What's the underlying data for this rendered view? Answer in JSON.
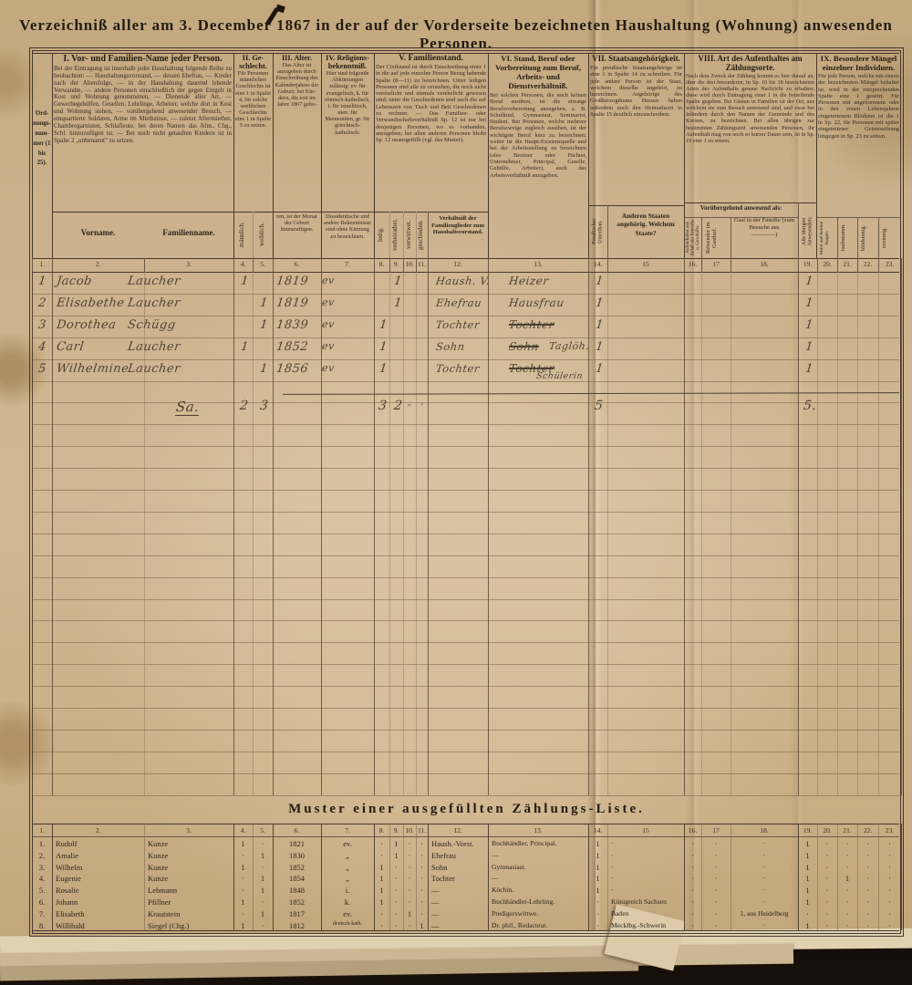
{
  "page_title": "Verzeichniß aller am 3. December 1867 in der auf der Vorderseite bezeichneten Haushaltung (Wohnung) anwesenden Personen.",
  "colors": {
    "paper": "#c9ae87",
    "print_ink": "#2e251a",
    "hand_ink": "#4e4232",
    "background": "#17100a"
  },
  "main_table": {
    "order_column_label": "Ord- nungs- num- mer (1 bis 25).",
    "sections": [
      {
        "title": "I. Vor- und Familien-Name jeder Person.",
        "desc": "Bei der Eintragung ist innerhalb jeder Haushaltung folgende Reihe zu beobachten: — Haushaltungsvorstand, — dessen Ehefrau, — Kinder nach der Altersfolge, — in der Haushaltung dauernd lebende Verwandte, — andere Personen einschließlich der gegen Entgelt in Kost und Wohnung genommenen, — Dienende aller Art, — Gewerbegehülfen, Gesellen, Lehrlinge, Arbeiter, welche dort in Kost und Wohnung stehen, — vorübergehend anwesender Besuch, — einquartierte Soldaten, Arme im Miethzinse, — zuletzt Aftermiether, Chambregarnisten, Schlafleute, bei deren Namen das Afm., Chg., Schl. hinzuzufügen ist. — Bei noch nicht getauften Kindern ist in Spalte 2 „unbenannt” zu setzen."
      },
      {
        "title": "II. Ge­schlecht.",
        "desc": "Für Personen männ­lichen Geschlechts ist eine 1 in Spalte 4, für solche weiblichen Geschlechts eine 1 in Spalte 5 zu setzen."
      },
      {
        "title": "III. Alter.",
        "desc": "Das Alter ist anzugeben durch Einschrei­bung des Kalender­jahres der Geburt; bei Kin­dern, die erst im Jahre 1867 gebo-"
      },
      {
        "title": "IV. Reli­gions­bekenntniß.",
        "desc": "Hier sind folgende Abkürzungen zulässig: ev. für evangelisch, k. für römisch-katholisch, i. für israelitisch, men. für Mennoniten, gr. für griechisch-katholisch."
      },
      {
        "title": "V. Familienstand.",
        "desc": "Der Civilstand ist durch Einschreibung einer 1 in die auf jede einzelne Person Bezug habende Spalte (8—11) zu bezeichnen. Unter ledigen Personen sind alle zu verstehen, die noch nicht verehelicht und niemals verehelicht gewesen sind; unter die Geschiedenen sind auch die auf Lebenszeit von Tisch und Bett Geschiedenen zu rechnen. — Das Familien- oder Verwandtschaftsverhältniß Sp. 12 ist nur bei denjenigen Personen, wo es vorhanden, anzugeben; bei allen anderen Personen bleibt Sp. 12 unausgefüllt (vgl. das Muster)."
      },
      {
        "title": "VI. Stand, Beruf oder Vorbereitung zum Beruf, Arbeits- und Dienstverhältniß.",
        "desc": "Bei solchen Personen, die noch keinen Beruf ausüben, ist die etwaige Berufsvorbereitung anzugeben, z. B. Schulkind, Gymnasiast, Seminarist, Student. Bei Personen, welche mehrere Berufszweige zugleich ausüben, ist der wichtigste Beruf kurz zu bezeichnen; weiter ist die Haupt-Existenzquelle und bei der Arbeitsstellung zu bezeichnen (also Besitzer oder Pächter, Unternehmer, Principal, Geselle, Gehülfe, Arbeiter), auch das Arbeitsverhältniß anzugeben."
      },
      {
        "title": "VII. Staatsangehörigkeit.",
        "desc": "Für preußische Staatsangehörige ist eine 1 in Spalte 14 zu schreiben. Für jede andere Person ist der Staat, welchem dieselbe angehört, zu bezeichnen. Angehörige des Großherzogthums Hessen haben außerdem noch den Heimathsort in Spalte 15 deutlich einzuschreiben."
      },
      {
        "title": "VIII. Art des Aufenthaltes am Zählungsorte.",
        "desc": "Nach dem Zweck der Zählung kommt es hier darauf an, über die drei besonderen, in Sp. 16 bis 18 bezeichneten Arten des Aufenthalts genaue Nachricht zu erhalten; diese wird durch Eintragung einer 1 in die betreffende Spalte gegeben. Bei Gästen in Familien ist der Ort, aus welchem sie zum Besuch anwesend sind, und zwar bei Inländern durch den Namen der Gemeinde und des Kreises, zu bezeichnen. Bei allen übrigen zur bestimmten Zählungszeit anwesenden Personen, ihr Aufenthalt mag von noch so kurzer Dauer sein, ist in Sp. 19 eine 1 zu setzen."
      },
      {
        "title": "IX. Besondere Mängel einzelner Individuen.",
        "desc": "Für jede Person, welche mit einem der bezeichneten Mängel behaftet ist, wird in der entsprechenden Spalte eine 1 gesetzt. Für Personen mit angeborenem oder in den ersten Lebensjahren eingetretenem Blödsinn ist die 1 in Sp. 22, für Personen mit später eingetretener Geistesstörung hingegen in Sp. 23 zu setzen."
      }
    ],
    "subheads": {
      "vorname": "Vorname.",
      "familienname": "Familienname.",
      "maennlich": "männlich.",
      "weiblich": "weiblich.",
      "alter_fortsetzung": "ren, ist der Monat der Geburt hinzuzu­fügen.",
      "religion_fortsetzung": "Dissidentische und andere Bekenntnisse sind ohne Kürzung zu bezeichnen.",
      "ledig": "ledig.",
      "verheirathet": "verheirathet.",
      "verwittwet": "verwittwet.",
      "geschieden": "geschieden.",
      "verhaeltnis": "Verhältniß der Familienglieder zum Haushalts­vorstand.",
      "preussischer_unterthan": "Preußischer Unterthan.",
      "andere_staaten": "Anderen Staaten angehörig. Welchem Staate?",
      "voruebergehend": "Vorübergehend anwesend als:",
      "aufenthalter": "Aufenthalter aus Anlaß des Erwerbs u. Geschäfts.",
      "reisender": "Reisender im Gasthof.",
      "gast": "Gast in der Fa­milie (zum Besuche aus",
      "gast_blank": "————)",
      "uebrige": "Alle übrigen Anwesenden.",
      "blind": "blind auf bei­den Augen.",
      "taubstumm": "taubstumm.",
      "bloedsinnig": "blödsinnig.",
      "irrsinnig": "irrsinnig."
    },
    "col_numbers": [
      "1.",
      "2.",
      "3.",
      "4.",
      "5.",
      "6.",
      "7.",
      "8.",
      "9.",
      "10.",
      "11.",
      "12.",
      "13.",
      "14.",
      "15",
      "16.",
      "17",
      "18.",
      "19.",
      "20.",
      "21.",
      "22.",
      "23."
    ],
    "rows": [
      {
        "nr": "1",
        "vorname": "Jacob",
        "familienname": "Laucher",
        "geschlecht": "m",
        "geburtsjahr": "1819",
        "religion": "ev",
        "familienstand": "verheirathet",
        "verhaeltnis": "Haush. V.",
        "beruf": "Heizer",
        "beruf_struck": false,
        "preussischer_unterthan": "1",
        "uebrige_anwesende": "1"
      },
      {
        "nr": "2",
        "vorname": "Elisabethe",
        "familienname": "Laucher",
        "geschlecht": "w",
        "geburtsjahr": "1819",
        "religion": "ev",
        "familienstand": "verheirathet",
        "verhaeltnis": "Ehefrau",
        "beruf": "Hausfrau",
        "beruf_struck": false,
        "preussischer_unterthan": "1",
        "uebrige_anwesende": "1"
      },
      {
        "nr": "3",
        "vorname": "Dorothea",
        "familienname": "Schügg",
        "geschlecht": "w",
        "geburtsjahr": "1839",
        "religion": "ev",
        "familienstand": "ledig",
        "verhaeltnis": "Tochter",
        "beruf": "Tochter",
        "beruf_struck": true,
        "preussischer_unterthan": "1",
        "uebrige_anwesende": "1"
      },
      {
        "nr": "4",
        "vorname": "Carl",
        "familienname": "Laucher",
        "geschlecht": "m",
        "geburtsjahr": "1852",
        "religion": "ev",
        "familienstand": "ledig",
        "verhaeltnis": "Sohn",
        "beruf": "Sohn",
        "beruf_struck": true,
        "beruf_zusatz": "Taglöh.",
        "preussischer_unterthan": "1",
        "uebrige_anwesende": "1"
      },
      {
        "nr": "5",
        "vorname": "Wilhelmine",
        "familienname": "Laucher",
        "geschlecht": "w",
        "geburtsjahr": "1856",
        "religion": "ev",
        "familienstand": "ledig",
        "verhaeltnis": "Tochter",
        "beruf": "Tochter",
        "beruf_struck": true,
        "beruf_zusatz_unten": "Schülerin",
        "preussischer_unterthan": "1",
        "uebrige_anwesende": "1"
      }
    ],
    "summary": {
      "label": "Sa.",
      "maennlich": "2",
      "weiblich": "3",
      "ledig": "3",
      "verheirathet": "2",
      "verwittwet": "-",
      "geschieden": "·",
      "preussischer_unterthan": "5",
      "uebrige_anwesende": "5."
    }
  },
  "muster": {
    "title": "Muster einer ausgefüllten Zählungs-Liste.",
    "rows": [
      [
        "1.",
        "Rudolf",
        "Kunze",
        "1",
        "·",
        "1821",
        "ev.",
        "·",
        "1",
        "·",
        "·",
        "Haush.-Vorst.",
        "Buchhändler, Principal.",
        "1",
        "·",
        "·",
        "·",
        "·",
        "1",
        "·",
        "·",
        "·",
        "·"
      ],
      [
        "2.",
        "Amalie",
        "Kunze",
        "·",
        "1",
        "1830",
        "„",
        "·",
        "1",
        "·",
        "·",
        "Ehefrau",
        "—",
        "1",
        "·",
        "·",
        "·",
        "·",
        "1",
        "·",
        "·",
        "·",
        "·"
      ],
      [
        "3.",
        "Wilhelm",
        "Kunze",
        "1",
        "·",
        "1852",
        "„",
        "1",
        "·",
        "·",
        "·",
        "Sohn",
        "Gymnasiast.",
        "1",
        "·",
        "·",
        "·",
        "·",
        "1",
        "·",
        "·",
        "·",
        "·"
      ],
      [
        "4.",
        "Eugenie",
        "Kunze",
        "·",
        "1",
        "1854",
        "„",
        "1",
        "·",
        "·",
        "·",
        "Tochter",
        "—",
        "1",
        "·",
        "·",
        "·",
        "·",
        "1",
        "·",
        "1",
        "·",
        "·"
      ],
      [
        "5.",
        "Rosalie",
        "Lehmann",
        "·",
        "1",
        "1848",
        "i.",
        "1",
        "·",
        "·",
        "·",
        "—",
        "Köchin.",
        "1",
        "·",
        "·",
        "·",
        "·",
        "1",
        "·",
        "·",
        "·",
        "·"
      ],
      [
        "6.",
        "Johann",
        "Pfillner",
        "1",
        "·",
        "1852",
        "k.",
        "1",
        "·",
        "·",
        "·",
        "—",
        "Buchhändler-Lehrling.",
        "·",
        "Königreich Sachsen",
        "·",
        "·",
        "·",
        "1",
        "·",
        "·",
        "·",
        "·"
      ],
      [
        "7.",
        "Elisabeth",
        "Krautstein",
        "·",
        "1",
        "1817",
        "ev.",
        "·",
        "·",
        "1",
        "·",
        "—",
        "Predigerswittwe.",
        "·",
        "Baden",
        "·",
        "·",
        "1, aus Heidelberg",
        "·",
        "·",
        "·",
        "·",
        "·"
      ],
      [
        "8.",
        "Willibald",
        "Siegel (Chg.)",
        "1",
        "·",
        "1812",
        "deutsch-kath.",
        "·",
        "·",
        "·",
        "1",
        "—",
        "Dr. phil., Redacteur.",
        "·",
        "Mecklbg.-Schwerin",
        "·",
        "·",
        "·",
        "1",
        "·",
        "·",
        "·",
        "·"
      ]
    ]
  }
}
